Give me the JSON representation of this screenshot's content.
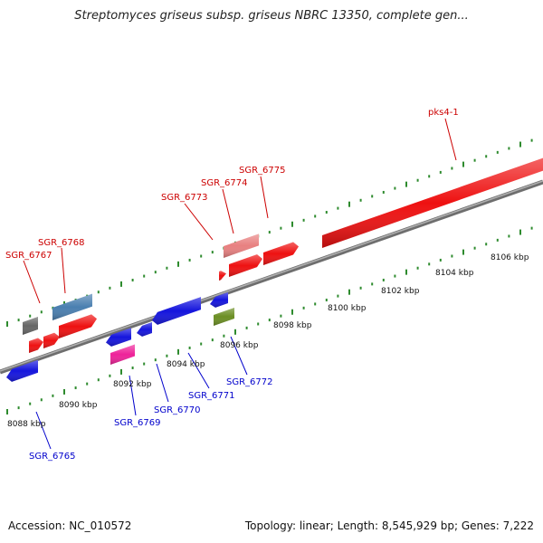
{
  "title": "Streptomyces griseus subsp. griseus NBRC 13350, complete gen...",
  "footer": {
    "accession": "Accession: NC_010572",
    "topology": "Topology: linear; Length: 8,545,929 bp; Genes: 7,222"
  },
  "colors": {
    "backbone": "#8a8a8a",
    "tick_green": "#2e8b2e",
    "forward_label": "#cc0000",
    "reverse_label": "#0000cc",
    "red": "#ee1111",
    "pink_light": "#e88080",
    "blue": "#1515dd",
    "steel_blue": "#4a7fb0",
    "gray": "#666666",
    "magenta": "#ee2299",
    "olive": "#6b8e23"
  },
  "scale_labels": [
    "8088 kbp",
    "8090 kbp",
    "8092 kbp",
    "8094 kbp",
    "8096 kbp",
    "8098 kbp",
    "8100 kbp",
    "8102 kbp",
    "8104 kbp",
    "8106 kbp"
  ],
  "forward_labels": [
    "SGR_6767",
    "SGR_6768",
    "SGR_6773",
    "SGR_6774",
    "SGR_6775",
    "pks4-1"
  ],
  "reverse_labels": [
    "SGR_6765",
    "SGR_6769",
    "SGR_6770",
    "SGR_6771",
    "SGR_6772"
  ]
}
